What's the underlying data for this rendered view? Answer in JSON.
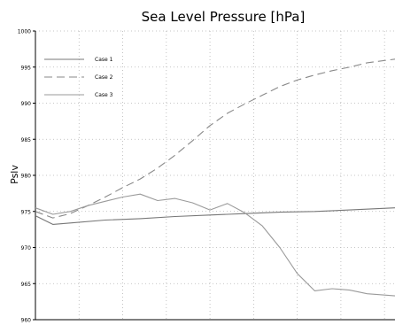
{
  "chart_data": {
    "type": "line",
    "title": "Sea Level Pressure [hPa]",
    "xlabel": "",
    "ylabel": "Pslv",
    "ylim": [
      960,
      1000
    ],
    "yticks": [
      960,
      965,
      970,
      975,
      980,
      985,
      990,
      995,
      1000
    ],
    "xlim": [
      0,
      20.6
    ],
    "grid": true,
    "legend_position": "top-left",
    "series": [
      {
        "name": "Case 1",
        "style": "solid",
        "color": "#777777",
        "x": [
          0,
          1,
          2,
          4,
          6,
          8,
          10,
          12,
          14,
          16,
          18,
          20.6
        ],
        "y": [
          974.4,
          973.2,
          973.4,
          973.8,
          974.0,
          974.3,
          974.5,
          974.7,
          974.9,
          975.0,
          975.2,
          975.5
        ]
      },
      {
        "name": "Case 2",
        "style": "dashed",
        "color": "#888888",
        "x": [
          0,
          1,
          2,
          3,
          4,
          5,
          6,
          7,
          8,
          9,
          10,
          11,
          12,
          13,
          14,
          15,
          16,
          17,
          18,
          19,
          20.6
        ],
        "y": [
          975.0,
          974.1,
          974.7,
          975.8,
          977.0,
          978.3,
          979.5,
          981.0,
          982.8,
          984.8,
          986.9,
          988.6,
          989.9,
          991.1,
          992.3,
          993.2,
          993.9,
          994.5,
          995.0,
          995.6,
          996.1
        ]
      },
      {
        "name": "Case 3",
        "style": "solid",
        "color": "#9a9a9a",
        "x": [
          0,
          1,
          2,
          3,
          4,
          5,
          6,
          7,
          8,
          9,
          10,
          11,
          12,
          13,
          14,
          15,
          16,
          17,
          18,
          19,
          20.6
        ],
        "y": [
          975.5,
          974.6,
          975.0,
          975.8,
          976.4,
          977.0,
          977.4,
          976.5,
          976.8,
          976.2,
          975.2,
          976.1,
          974.8,
          973.0,
          970.0,
          966.4,
          964.0,
          964.3,
          964.1,
          963.6,
          963.3
        ]
      }
    ]
  },
  "colors": {
    "grid": "#b4b4b4",
    "axis": "#000000",
    "text": "#000000",
    "background": "#ffffff"
  }
}
